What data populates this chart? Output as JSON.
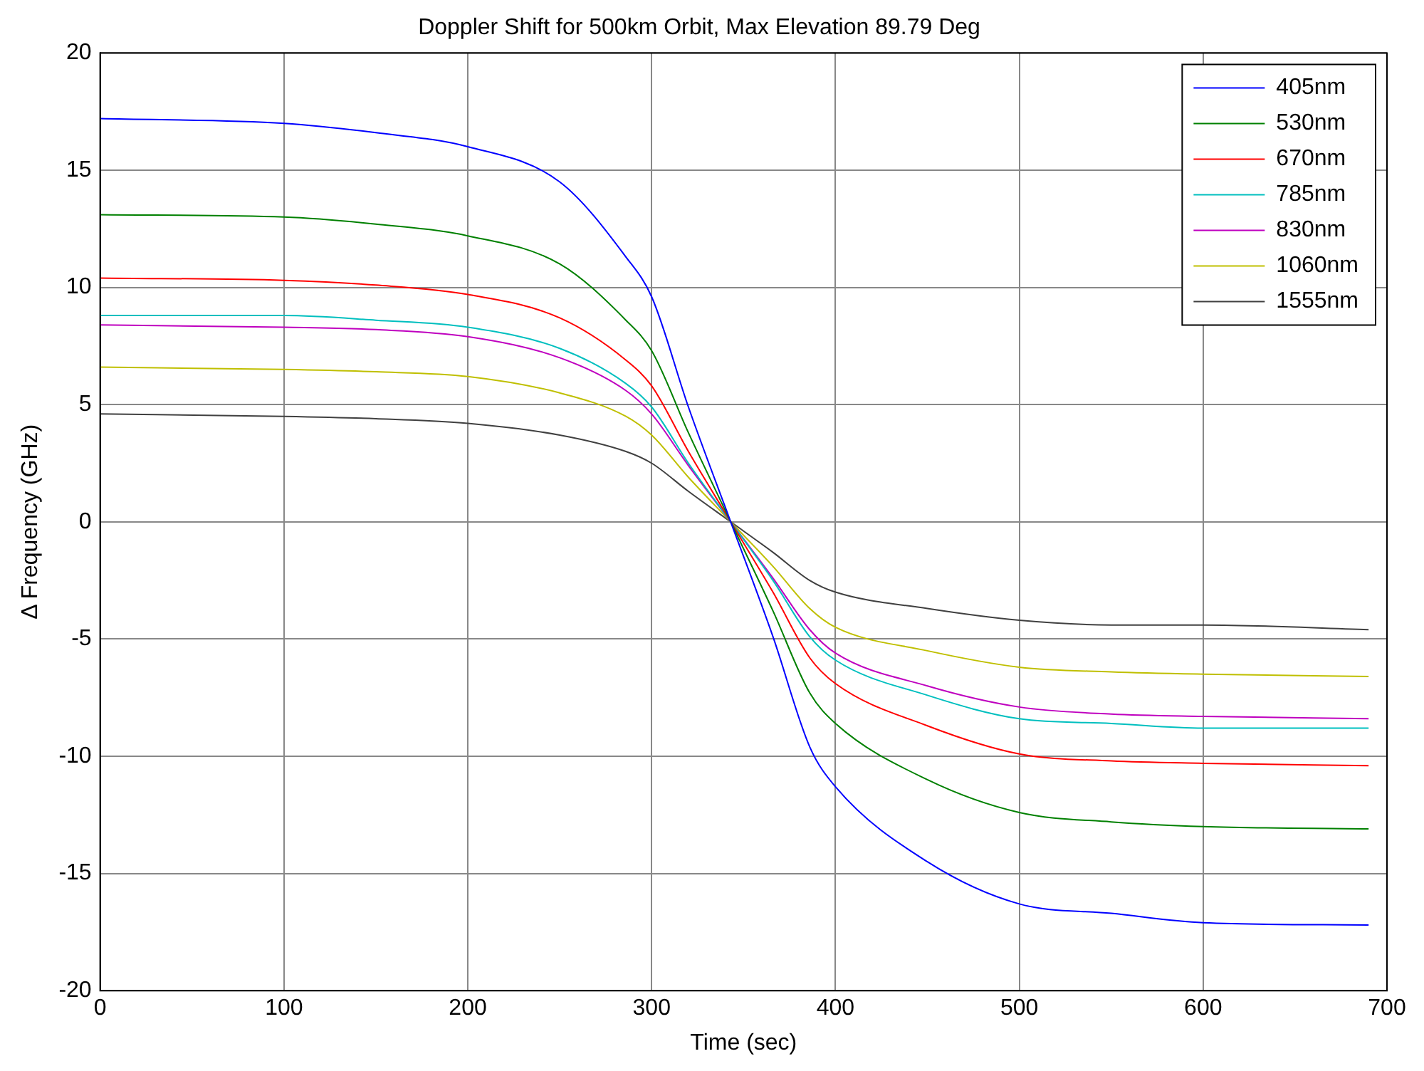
{
  "chart_data": {
    "type": "line",
    "title": "Doppler Shift for 500km Orbit, Max Elevation 89.79 Deg",
    "xlabel": "Time (sec)",
    "ylabel": "Δ Frequency (GHz)",
    "x": [
      0,
      100,
      150,
      200,
      250,
      286,
      300,
      320,
      343,
      366,
      386,
      400,
      450,
      500,
      550,
      600,
      690
    ],
    "series": [
      {
        "name": "405nm",
        "color": "#0000ff",
        "values": [
          17.2,
          17.0,
          16.6,
          16.0,
          14.5,
          11.3,
          9.6,
          4.9,
          0,
          -4.9,
          -9.6,
          -11.3,
          -14.5,
          -16.3,
          -16.7,
          -17.1,
          -17.2
        ]
      },
      {
        "name": "530nm",
        "color": "#008000",
        "values": [
          13.1,
          13.0,
          12.7,
          12.2,
          11.0,
          8.6,
          7.3,
          3.8,
          0,
          -3.8,
          -7.3,
          -8.6,
          -11.0,
          -12.4,
          -12.8,
          -13.0,
          -13.1
        ]
      },
      {
        "name": "670nm",
        "color": "#ff0000",
        "values": [
          10.4,
          10.3,
          10.1,
          9.7,
          8.7,
          6.9,
          5.8,
          3.0,
          0,
          -3.0,
          -5.8,
          -6.9,
          -8.7,
          -9.9,
          -10.2,
          -10.3,
          -10.4
        ]
      },
      {
        "name": "785nm",
        "color": "#00bfbf",
        "values": [
          8.8,
          8.8,
          8.6,
          8.3,
          7.4,
          5.9,
          4.9,
          2.5,
          0,
          -2.5,
          -4.9,
          -5.9,
          -7.4,
          -8.4,
          -8.6,
          -8.8,
          -8.8
        ]
      },
      {
        "name": "830nm",
        "color": "#bf00bf",
        "values": [
          8.4,
          8.3,
          8.2,
          7.9,
          7.0,
          5.6,
          4.6,
          2.4,
          0,
          -2.4,
          -4.6,
          -5.6,
          -7.0,
          -7.9,
          -8.2,
          -8.3,
          -8.4
        ]
      },
      {
        "name": "1060nm",
        "color": "#bfbf00",
        "values": [
          6.6,
          6.5,
          6.4,
          6.2,
          5.5,
          4.5,
          3.7,
          1.9,
          0,
          -1.9,
          -3.7,
          -4.5,
          -5.5,
          -6.2,
          -6.4,
          -6.5,
          -6.6
        ]
      },
      {
        "name": "1555nm",
        "color": "#404040",
        "values": [
          4.6,
          4.5,
          4.4,
          4.2,
          3.7,
          3.0,
          2.5,
          1.3,
          0,
          -1.3,
          -2.5,
          -3.0,
          -3.7,
          -4.2,
          -4.4,
          -4.4,
          -4.6
        ]
      }
    ],
    "xlim": [
      0,
      700
    ],
    "xticks": [
      0,
      100,
      200,
      300,
      400,
      500,
      600,
      700
    ],
    "ylim": [
      -20,
      20
    ],
    "yticks": [
      -20,
      -15,
      -10,
      -5,
      0,
      5,
      10,
      15,
      20
    ],
    "grid": true,
    "legend": "top right",
    "marker": "none",
    "line_style": "solid"
  }
}
